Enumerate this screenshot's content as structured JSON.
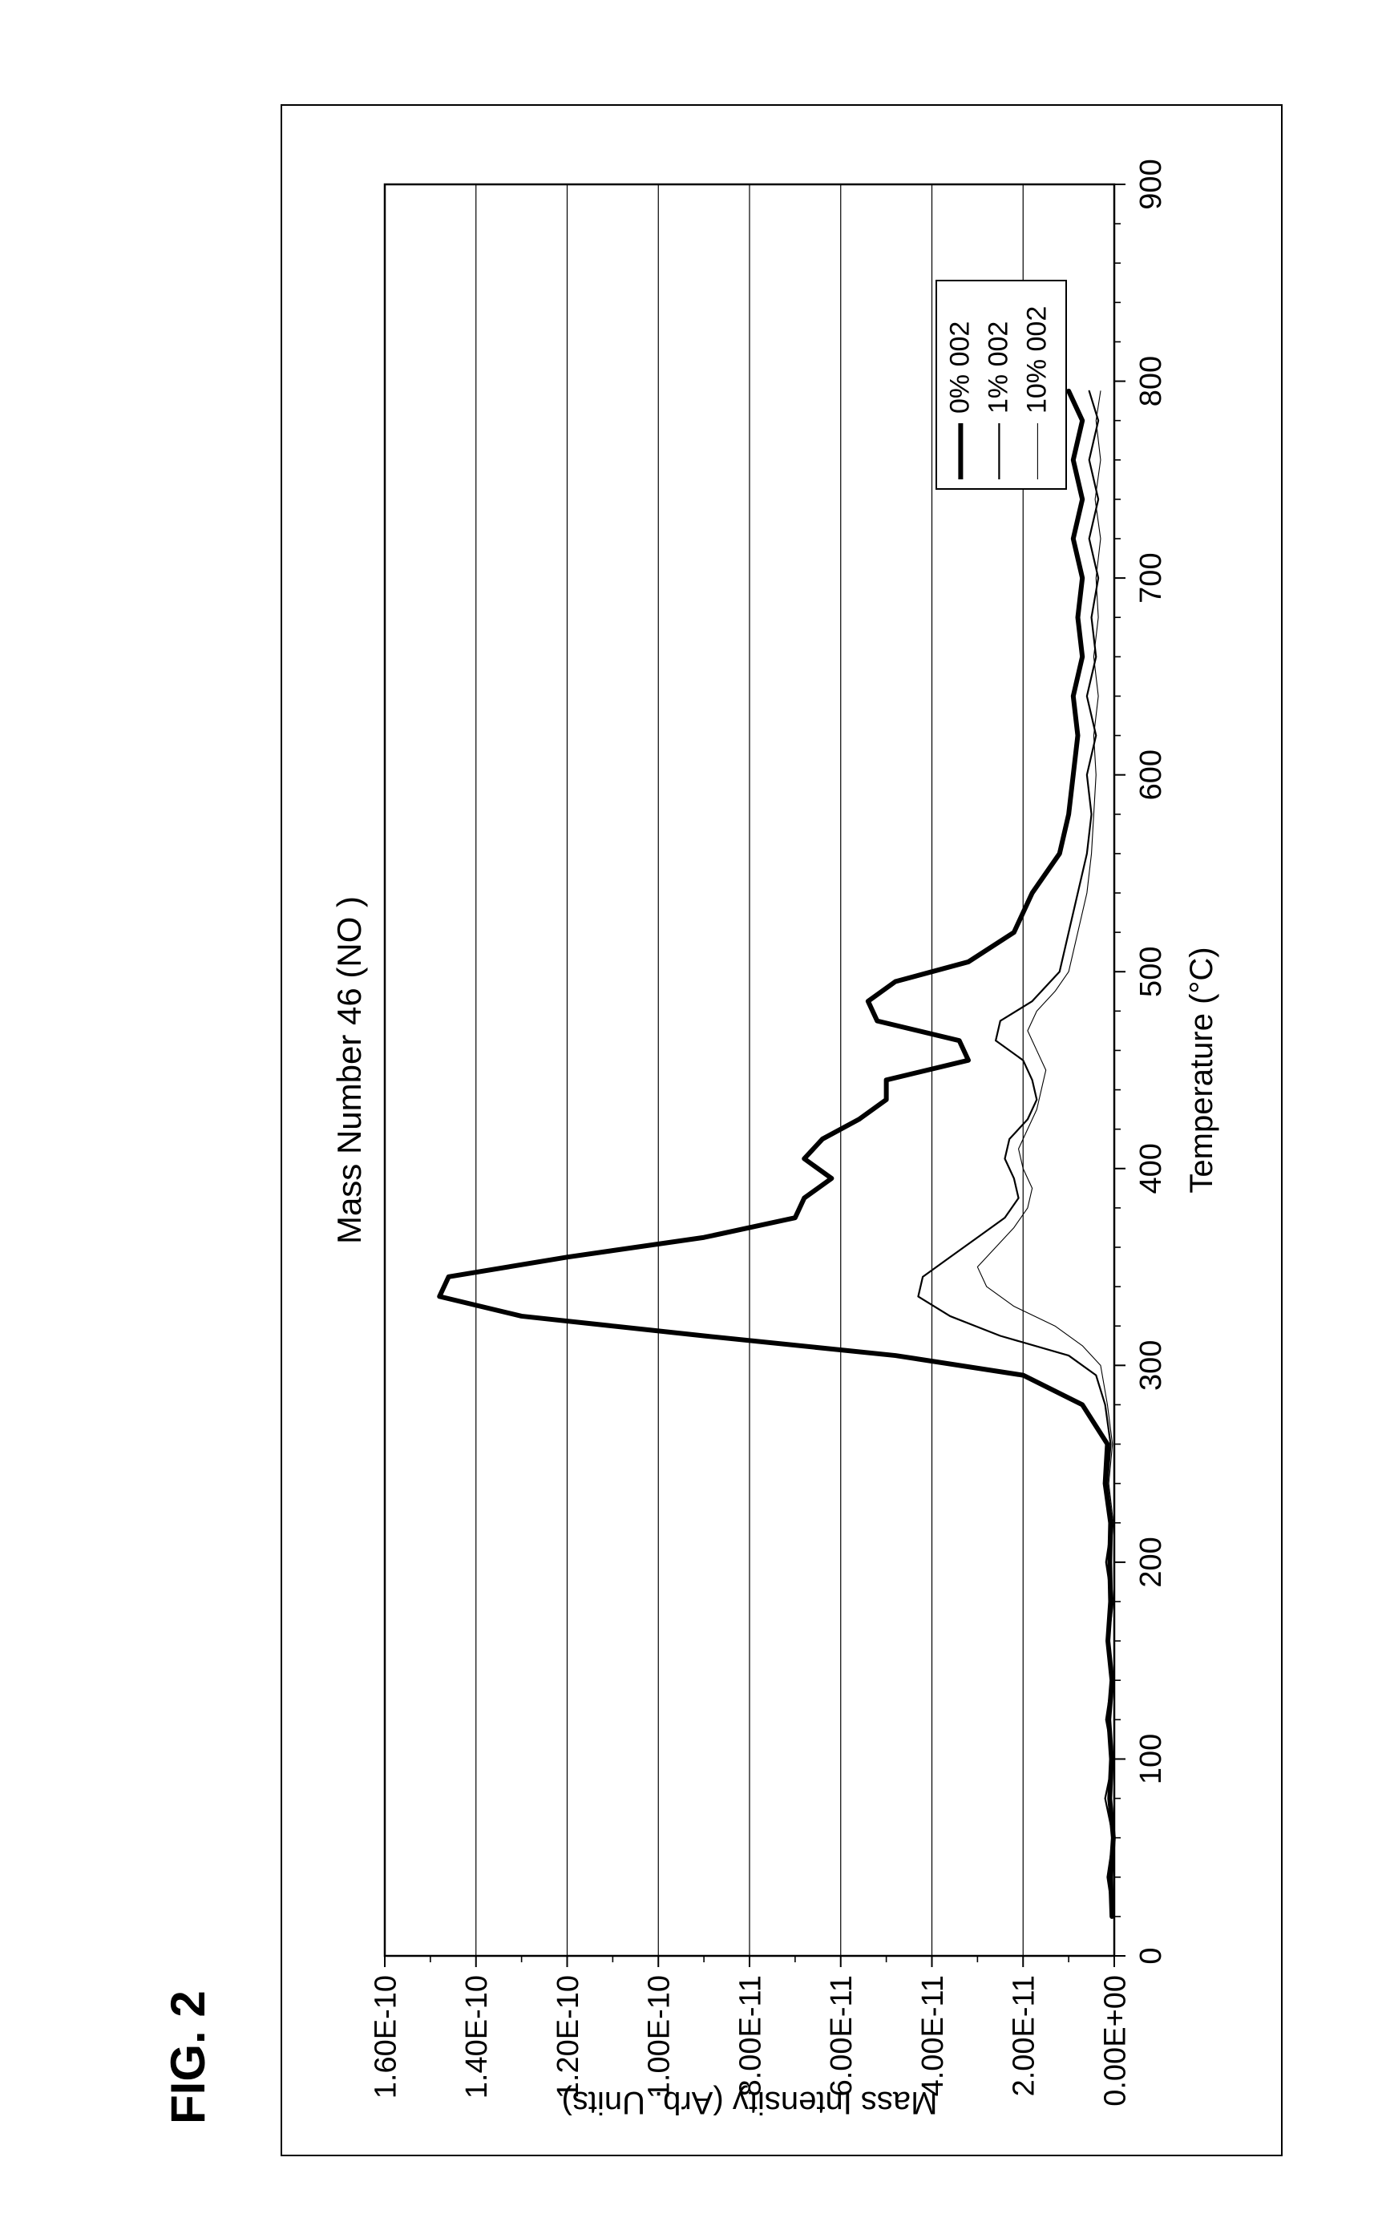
{
  "figure_label": "FIG. 2",
  "chart": {
    "type": "line",
    "title": "Mass Number 46 (NO )",
    "title_fontsize": 42,
    "xlabel": "Temperature (°C)",
    "ylabel": "Mass Intensity (Arb. Units)",
    "label_fontsize": 40,
    "tick_fontsize": 38,
    "background_color": "#ffffff",
    "axis_color": "#000000",
    "grid_color": "#000000",
    "grid_width": 1.2,
    "xlim": [
      0,
      900
    ],
    "xtick_step": 100,
    "ylim": [
      0.0,
      1.6e-10
    ],
    "ytick_step": 2e-11,
    "ytick_labels": [
      "0.00E+00",
      "2.00E-11",
      "4.00E-11",
      "6.00E-11",
      "8.00E-11",
      "1.00E-10",
      "1.20E-10",
      "1.40E-10",
      "1.60E-10"
    ],
    "tick_len_major": 14,
    "tick_len_minor": 8,
    "x_minor_per_major": 4,
    "series": [
      {
        "name": "0% 002",
        "color": "#000000",
        "width": 6,
        "data": [
          [
            20,
            5e-13
          ],
          [
            40,
            8e-13
          ],
          [
            60,
            2e-13
          ],
          [
            80,
            1e-12
          ],
          [
            100,
            6e-13
          ],
          [
            120,
            1.2e-12
          ],
          [
            140,
            5e-13
          ],
          [
            160,
            1.4e-12
          ],
          [
            180,
            8e-13
          ],
          [
            200,
            1e-12
          ],
          [
            220,
            8e-13
          ],
          [
            240,
            2e-12
          ],
          [
            260,
            1.5e-12
          ],
          [
            280,
            7e-12
          ],
          [
            295,
            2e-11
          ],
          [
            305,
            4.8e-11
          ],
          [
            315,
            9e-11
          ],
          [
            325,
            1.3e-10
          ],
          [
            335,
            1.48e-10
          ],
          [
            345,
            1.46e-10
          ],
          [
            355,
            1.2e-10
          ],
          [
            365,
            9e-11
          ],
          [
            375,
            7e-11
          ],
          [
            385,
            6.8e-11
          ],
          [
            395,
            6.2e-11
          ],
          [
            405,
            6.8e-11
          ],
          [
            415,
            6.4e-11
          ],
          [
            425,
            5.6e-11
          ],
          [
            435,
            5e-11
          ],
          [
            445,
            5e-11
          ],
          [
            455,
            3.2e-11
          ],
          [
            465,
            3.4e-11
          ],
          [
            475,
            5.2e-11
          ],
          [
            485,
            5.4e-11
          ],
          [
            495,
            4.8e-11
          ],
          [
            505,
            3.2e-11
          ],
          [
            520,
            2.2e-11
          ],
          [
            540,
            1.8e-11
          ],
          [
            560,
            1.2e-11
          ],
          [
            580,
            1e-11
          ],
          [
            600,
            9e-12
          ],
          [
            620,
            8e-12
          ],
          [
            640,
            9e-12
          ],
          [
            660,
            7e-12
          ],
          [
            680,
            8e-12
          ],
          [
            700,
            7e-12
          ],
          [
            720,
            9e-12
          ],
          [
            740,
            7e-12
          ],
          [
            760,
            9e-12
          ],
          [
            780,
            7e-12
          ],
          [
            795,
            1e-11
          ]
        ]
      },
      {
        "name": "1% 002",
        "color": "#000000",
        "width": 2.2,
        "data": [
          [
            20,
            2e-13
          ],
          [
            40,
            1.5e-12
          ],
          [
            60,
            2e-13
          ],
          [
            80,
            2e-12
          ],
          [
            100,
            2e-13
          ],
          [
            120,
            1.8e-12
          ],
          [
            140,
            5e-13
          ],
          [
            160,
            1.5e-12
          ],
          [
            180,
            5e-13
          ],
          [
            200,
            1.8e-12
          ],
          [
            220,
            5e-13
          ],
          [
            240,
            1.5e-12
          ],
          [
            260,
            8e-13
          ],
          [
            280,
            2e-12
          ],
          [
            295,
            4e-12
          ],
          [
            305,
            1e-11
          ],
          [
            315,
            2.5e-11
          ],
          [
            325,
            3.6e-11
          ],
          [
            335,
            4.3e-11
          ],
          [
            345,
            4.2e-11
          ],
          [
            355,
            3.6e-11
          ],
          [
            365,
            3e-11
          ],
          [
            375,
            2.4e-11
          ],
          [
            385,
            2.1e-11
          ],
          [
            395,
            2.2e-11
          ],
          [
            405,
            2.4e-11
          ],
          [
            415,
            2.3e-11
          ],
          [
            425,
            1.9e-11
          ],
          [
            435,
            1.7e-11
          ],
          [
            445,
            1.8e-11
          ],
          [
            455,
            2e-11
          ],
          [
            465,
            2.6e-11
          ],
          [
            475,
            2.5e-11
          ],
          [
            485,
            1.8e-11
          ],
          [
            500,
            1.2e-11
          ],
          [
            520,
            1e-11
          ],
          [
            540,
            8e-12
          ],
          [
            560,
            6e-12
          ],
          [
            580,
            5e-12
          ],
          [
            600,
            6e-12
          ],
          [
            620,
            4e-12
          ],
          [
            640,
            6e-12
          ],
          [
            660,
            4e-12
          ],
          [
            680,
            5e-12
          ],
          [
            700,
            3.5e-12
          ],
          [
            720,
            5.5e-12
          ],
          [
            740,
            3.5e-12
          ],
          [
            760,
            5.5e-12
          ],
          [
            780,
            3.5e-12
          ],
          [
            795,
            5.5e-12
          ]
        ]
      },
      {
        "name": "10% 002",
        "color": "#000000",
        "width": 1.1,
        "data": [
          [
            20,
            2e-13
          ],
          [
            40,
            1e-12
          ],
          [
            60,
            2e-13
          ],
          [
            80,
            1.2e-12
          ],
          [
            100,
            2e-13
          ],
          [
            120,
            1e-12
          ],
          [
            140,
            2e-13
          ],
          [
            160,
            1.2e-12
          ],
          [
            180,
            2e-13
          ],
          [
            200,
            1e-12
          ],
          [
            220,
            2e-13
          ],
          [
            240,
            1.2e-12
          ],
          [
            260,
            4e-13
          ],
          [
            280,
            1.5e-12
          ],
          [
            300,
            3e-12
          ],
          [
            310,
            7e-12
          ],
          [
            320,
            1.3e-11
          ],
          [
            330,
            2.2e-11
          ],
          [
            340,
            2.8e-11
          ],
          [
            350,
            3e-11
          ],
          [
            360,
            2.6e-11
          ],
          [
            370,
            2.2e-11
          ],
          [
            380,
            1.9e-11
          ],
          [
            390,
            1.8e-11
          ],
          [
            400,
            2e-11
          ],
          [
            410,
            2.1e-11
          ],
          [
            420,
            1.9e-11
          ],
          [
            430,
            1.7e-11
          ],
          [
            440,
            1.6e-11
          ],
          [
            450,
            1.5e-11
          ],
          [
            460,
            1.7e-11
          ],
          [
            470,
            1.9e-11
          ],
          [
            480,
            1.7e-11
          ],
          [
            490,
            1.3e-11
          ],
          [
            500,
            1e-11
          ],
          [
            520,
            8e-12
          ],
          [
            540,
            6e-12
          ],
          [
            560,
            5e-12
          ],
          [
            580,
            4.5e-12
          ],
          [
            600,
            4e-12
          ],
          [
            620,
            4.5e-12
          ],
          [
            640,
            3.5e-12
          ],
          [
            660,
            4.5e-12
          ],
          [
            680,
            3.5e-12
          ],
          [
            700,
            4e-12
          ],
          [
            720,
            3e-12
          ],
          [
            740,
            4.2e-12
          ],
          [
            760,
            3e-12
          ],
          [
            780,
            4e-12
          ],
          [
            795,
            3e-12
          ]
        ]
      }
    ],
    "legend": {
      "border_color": "#000000",
      "border_width": 2,
      "bg": "#ffffff",
      "font_size": 34,
      "position": "inside-bottom-right",
      "sample_line_len": 70
    }
  }
}
